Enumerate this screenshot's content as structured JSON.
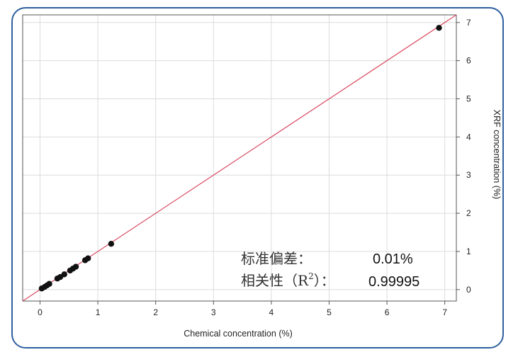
{
  "chart_data": {
    "type": "scatter",
    "xlabel": "Chemical concentration (%)",
    "ylabel": "XRF concentration (%)",
    "xlim": [
      -0.3,
      7.2
    ],
    "ylim": [
      -0.3,
      7.2
    ],
    "x_ticks": [
      "0",
      "1",
      "2",
      "3",
      "4",
      "5",
      "6",
      "7"
    ],
    "y_ticks": [
      "0",
      "1",
      "2",
      "3",
      "4",
      "5",
      "6",
      "7"
    ],
    "y_axis_side": "right",
    "grid": true,
    "fit_line": {
      "x": [
        -0.3,
        7.2
      ],
      "y": [
        -0.3,
        7.2
      ],
      "color": "#d9485f"
    },
    "point_color": "#111111",
    "points": [
      {
        "x": 0.03,
        "y": 0.03
      },
      {
        "x": 0.08,
        "y": 0.07
      },
      {
        "x": 0.12,
        "y": 0.11
      },
      {
        "x": 0.16,
        "y": 0.15
      },
      {
        "x": 0.3,
        "y": 0.29
      },
      {
        "x": 0.35,
        "y": 0.33
      },
      {
        "x": 0.42,
        "y": 0.4
      },
      {
        "x": 0.52,
        "y": 0.5
      },
      {
        "x": 0.57,
        "y": 0.55
      },
      {
        "x": 0.62,
        "y": 0.6
      },
      {
        "x": 0.78,
        "y": 0.77
      },
      {
        "x": 0.83,
        "y": 0.82
      },
      {
        "x": 1.23,
        "y": 1.2
      },
      {
        "x": 6.9,
        "y": 6.86
      }
    ],
    "annotations": [
      {
        "label": "标准偏差：",
        "value": "0.01%"
      },
      {
        "label_main": "相关性（R",
        "label_sup": "2",
        "label_end": "）：",
        "value": "0.99995"
      }
    ]
  }
}
